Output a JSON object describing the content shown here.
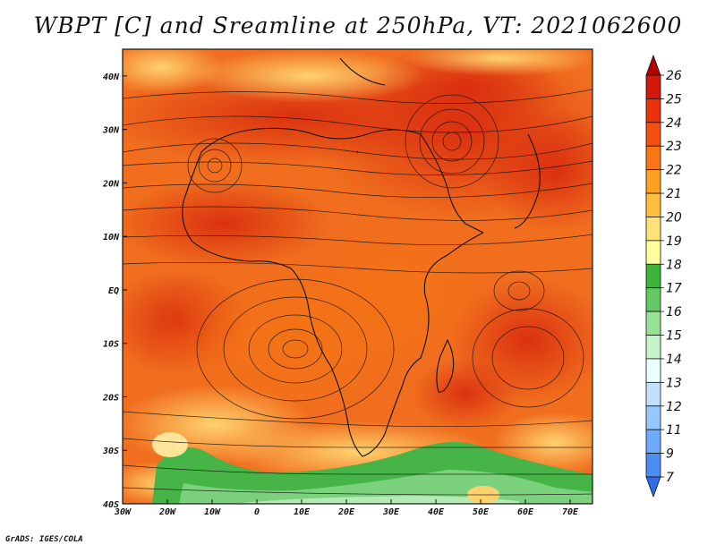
{
  "title": "WBPT [C] and Sreamline at 250hPa, VT: 2021062600",
  "footer": "GrADS: IGES/COLA",
  "map": {
    "x_ticks": [
      "30W",
      "20W",
      "10W",
      "0",
      "10E",
      "20E",
      "30E",
      "40E",
      "50E",
      "60E",
      "70E"
    ],
    "y_ticks": [
      "40N",
      "30N",
      "20N",
      "10N",
      "EQ",
      "10S",
      "20S",
      "30S",
      "40S"
    ],
    "lon_range": [
      -30,
      75
    ],
    "lat_range": [
      -40,
      45
    ]
  },
  "colorbar": {
    "labels": [
      "26",
      "25",
      "24",
      "23",
      "22",
      "21",
      "20",
      "19",
      "18",
      "17",
      "16",
      "15",
      "14",
      "13",
      "12",
      "11",
      "9",
      "7"
    ],
    "colors": [
      "#b40000",
      "#d2180a",
      "#e8320a",
      "#f5500f",
      "#fa7814",
      "#ffa01e",
      "#ffbe3c",
      "#ffe178",
      "#ffff9c",
      "#3cb43c",
      "#64c864",
      "#96e196",
      "#c8f5c8",
      "#ebffff",
      "#c3e1ff",
      "#96c8ff",
      "#6eaaff",
      "#4b8cf5",
      "#2d6ee6"
    ]
  }
}
